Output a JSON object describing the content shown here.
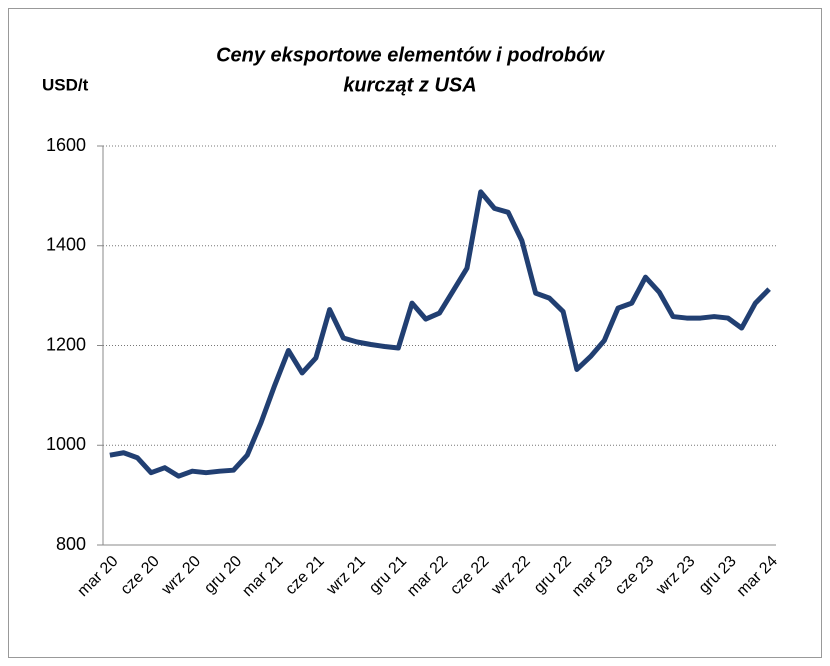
{
  "chart_data": {
    "type": "line",
    "title": "Ceny eksportowe elementów i podrobów",
    "subtitle": "kurcząt z USA",
    "y_label": "USD/t",
    "categories": [
      "mar 20",
      null,
      null,
      "cze 20",
      null,
      null,
      "wrz 20",
      null,
      null,
      "gru 20",
      null,
      null,
      "mar 21",
      null,
      null,
      "cze 21",
      null,
      null,
      "wrz 21",
      null,
      null,
      "gru 21",
      null,
      null,
      "mar 22",
      null,
      null,
      "cze 22",
      null,
      null,
      "wrz 22",
      null,
      null,
      "gru 22",
      null,
      null,
      "mar 23",
      null,
      null,
      "cze 23",
      null,
      null,
      "wrz 23",
      null,
      null,
      "gru 23",
      null,
      null,
      "mar 24"
    ],
    "series": [
      {
        "name": "USD/t",
        "color": "#213f72",
        "values": [
          980,
          985,
          975,
          945,
          955,
          938,
          948,
          945,
          948,
          950,
          980,
          1045,
          1120,
          1190,
          1145,
          1175,
          1272,
          1215,
          1207,
          1202,
          1198,
          1195,
          1285,
          1253,
          1265,
          1310,
          1355,
          1508,
          1475,
          1467,
          1410,
          1305,
          1295,
          1268,
          1152,
          1178,
          1210,
          1275,
          1285,
          1337,
          1307,
          1258,
          1255,
          1255,
          1258,
          1255,
          1235,
          1285,
          1313
        ]
      }
    ],
    "ylim": [
      800,
      1600
    ],
    "yticks": [
      800,
      1000,
      1200,
      1400,
      1600
    ],
    "grid": true
  }
}
